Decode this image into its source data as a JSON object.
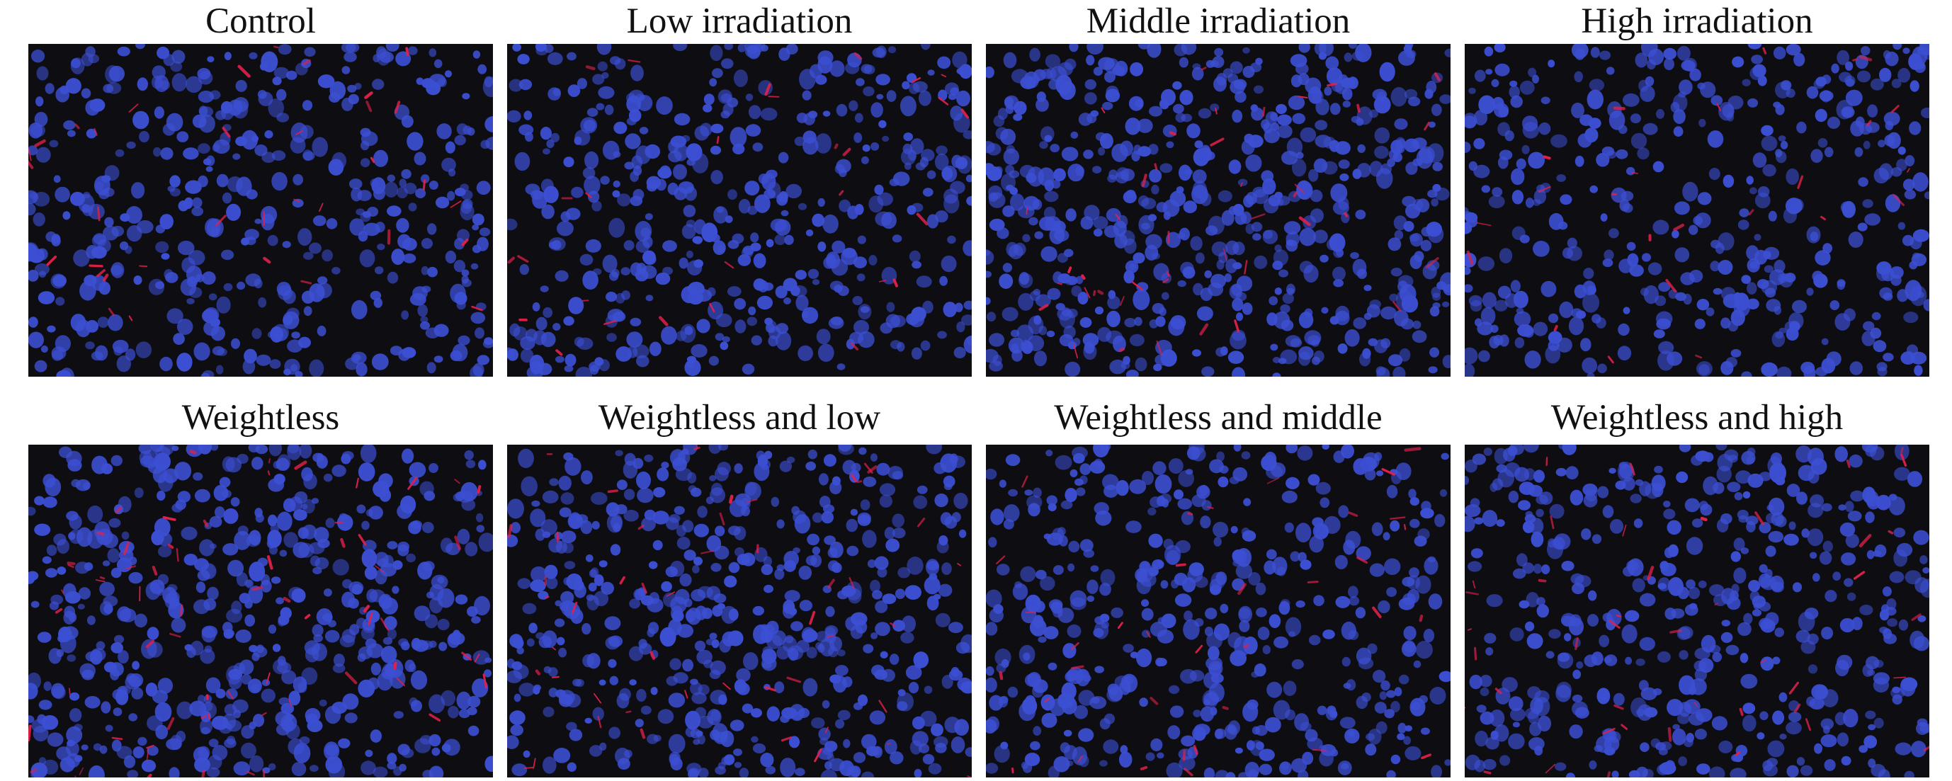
{
  "figure": {
    "panels": [
      {
        "title": "Control",
        "red_density": 0.35,
        "blue_density": 0.55,
        "seed": 11
      },
      {
        "title": "Low irradiation",
        "red_density": 0.25,
        "blue_density": 0.6,
        "seed": 23
      },
      {
        "title": "Middle irradiation",
        "red_density": 0.45,
        "blue_density": 0.95,
        "seed": 37
      },
      {
        "title": "High irradiation",
        "red_density": 0.2,
        "blue_density": 0.5,
        "seed": 41
      },
      {
        "title": "Weightless",
        "red_density": 0.8,
        "blue_density": 0.85,
        "seed": 53
      },
      {
        "title": "Weightless and low",
        "red_density": 0.55,
        "blue_density": 0.8,
        "seed": 67
      },
      {
        "title": "Weightless and middle",
        "red_density": 0.35,
        "blue_density": 0.6,
        "seed": 71
      },
      {
        "title": "Weightless and high",
        "red_density": 0.45,
        "blue_density": 0.6,
        "seed": 83
      }
    ],
    "colors": {
      "background": "#0d0d12",
      "nucleus": "#3c4fd2",
      "stain": "#e0204a"
    }
  }
}
